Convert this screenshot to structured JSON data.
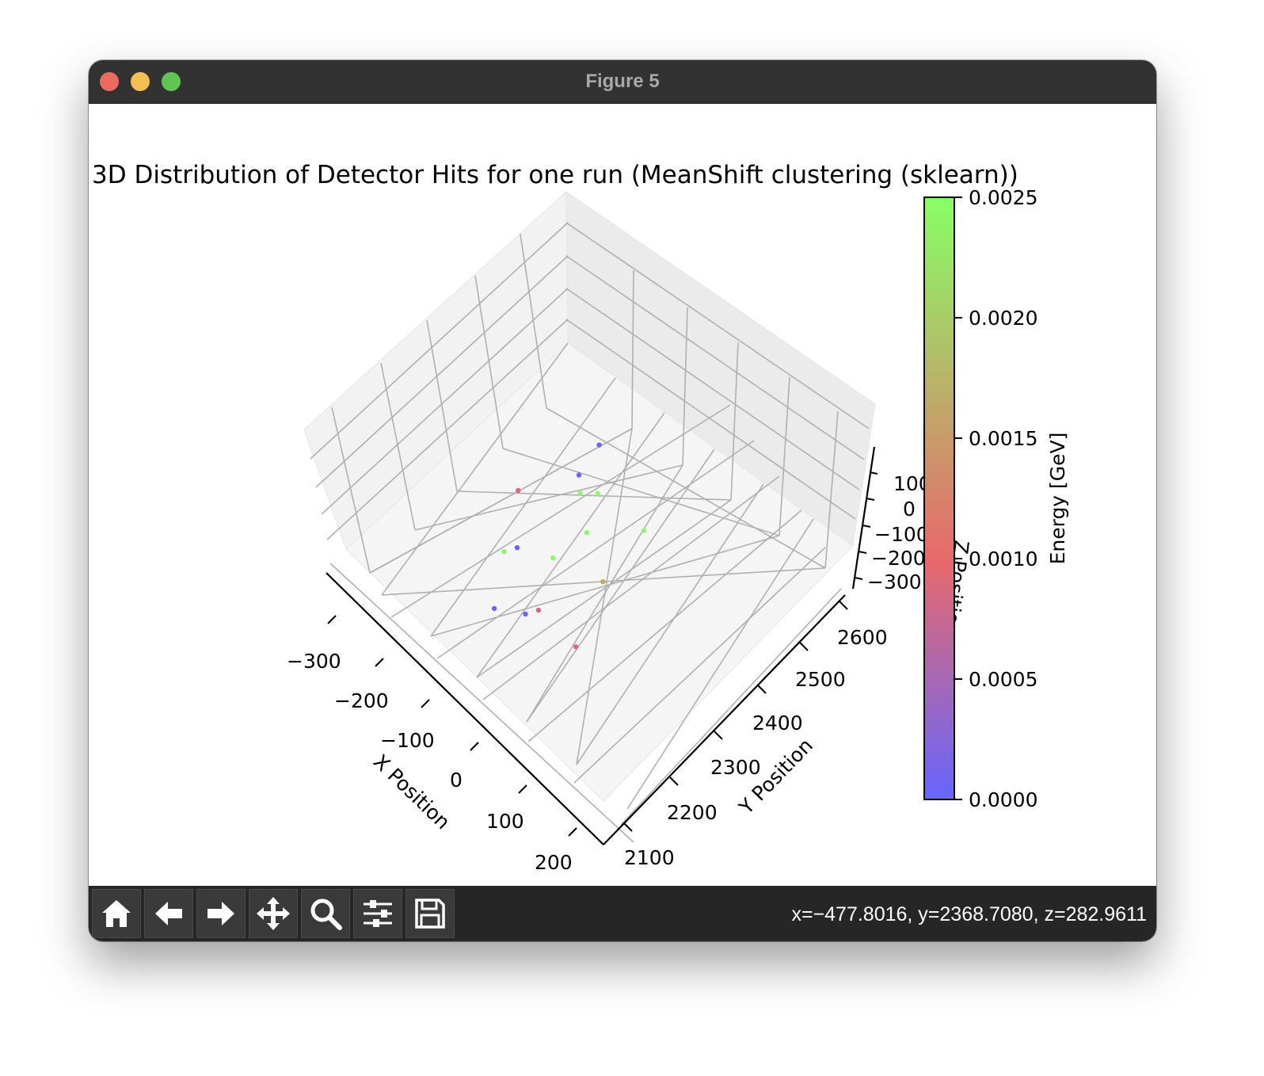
{
  "window": {
    "title": "Figure 5"
  },
  "chart_data": {
    "type": "scatter",
    "projection": "3d",
    "title": "3D Distribution of Detector Hits for one run (MeanShift clustering (sklearn))",
    "xlabel": "X Position",
    "ylabel": "Y Position",
    "zlabel": "Z Position",
    "x_ticks": [
      "−300",
      "−200",
      "−100",
      "0",
      "100",
      "200"
    ],
    "y_ticks": [
      "2100",
      "2200",
      "2300",
      "2400",
      "2500",
      "2600"
    ],
    "z_ticks": [
      "−300",
      "−200",
      "−100",
      "0",
      "100"
    ],
    "xlim": [
      -320,
      230
    ],
    "ylim": [
      2080,
      2680
    ],
    "grid": true,
    "colorbar": {
      "label": "Energy [GeV]",
      "ticks": [
        "0.0000",
        "0.0005",
        "0.0010",
        "0.0015",
        "0.0020",
        "0.0025"
      ],
      "range": [
        0,
        0.0025
      ],
      "colors": [
        "#6666ff",
        "#e8696b",
        "#88ff66"
      ]
    },
    "points": [
      {
        "x": -170,
        "y": 2520,
        "z": -150,
        "energy": 2e-05
      },
      {
        "x": -160,
        "y": 2460,
        "z": -150,
        "energy": 2e-05
      },
      {
        "x": -120,
        "y": 2460,
        "z": -150,
        "energy": 0.0025
      },
      {
        "x": -140,
        "y": 2440,
        "z": -150,
        "energy": 0.0025
      },
      {
        "x": -210,
        "y": 2370,
        "z": -150,
        "energy": 0.0009
      },
      {
        "x": -90,
        "y": 2400,
        "z": -150,
        "energy": 0.0025
      },
      {
        "x": -30,
        "y": 2470,
        "z": -150,
        "energy": 0.0025
      },
      {
        "x": -150,
        "y": 2300,
        "z": -150,
        "energy": 2e-05
      },
      {
        "x": -160,
        "y": 2280,
        "z": -150,
        "energy": 0.0025
      },
      {
        "x": -100,
        "y": 2330,
        "z": -150,
        "energy": 0.0025
      },
      {
        "x": -20,
        "y": 2360,
        "z": -150,
        "energy": 0.0016
      },
      {
        "x": -70,
        "y": 2230,
        "z": -150,
        "energy": 2e-05
      },
      {
        "x": -110,
        "y": 2200,
        "z": -150,
        "energy": 2e-05
      },
      {
        "x": -60,
        "y": 2250,
        "z": -150,
        "energy": 0.0009
      },
      {
        "x": 20,
        "y": 2250,
        "z": -150,
        "energy": 0.0009
      }
    ]
  },
  "toolbar": {
    "buttons": [
      {
        "name": "home-button",
        "icon": "home-icon"
      },
      {
        "name": "back-button",
        "icon": "arrow-left-icon"
      },
      {
        "name": "forward-button",
        "icon": "arrow-right-icon"
      },
      {
        "name": "pan-button",
        "icon": "move-icon"
      },
      {
        "name": "zoom-button",
        "icon": "magnifier-icon"
      },
      {
        "name": "configure-subplots-button",
        "icon": "sliders-icon"
      },
      {
        "name": "save-button",
        "icon": "floppy-icon"
      }
    ],
    "coords": "x=−477.8016, y=2368.7080, z=282.9611"
  }
}
